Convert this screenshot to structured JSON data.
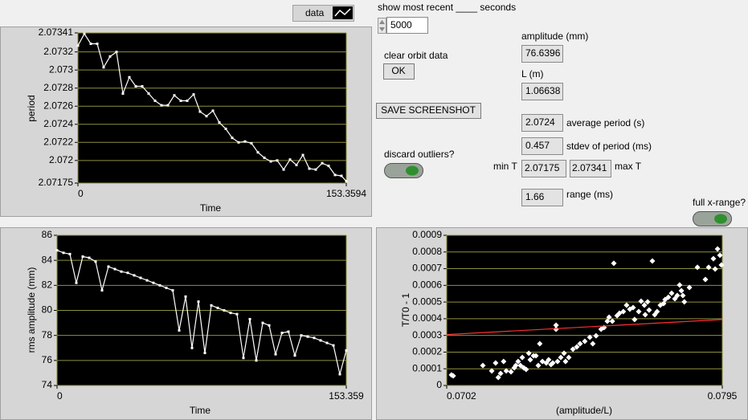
{
  "chart_data": [
    {
      "type": "line",
      "xlabel": "Time",
      "ylabel": "period",
      "xlim": [
        0,
        153.3594
      ],
      "ylim": [
        2.07175,
        2.07341
      ],
      "xticks": [
        0,
        153.3594
      ],
      "yticks": [
        2.07175,
        2.072,
        2.0722,
        2.0724,
        2.0726,
        2.0728,
        2.073,
        2.0732,
        2.07341
      ],
      "grid": true,
      "grid_color": "#8f8f40",
      "background": "#000000",
      "legend": "top-right",
      "series": [
        {
          "name": "data",
          "color": "#ffffff",
          "line": true,
          "marker": "square",
          "x": [
            0,
            3.67,
            7.35,
            11.02,
            14.69,
            18.37,
            22.04,
            25.71,
            29.39,
            33.06,
            36.73,
            40.41,
            44.08,
            47.75,
            51.43,
            55.1,
            58.77,
            62.45,
            66.12,
            69.79,
            73.47,
            77.14,
            80.81,
            84.49,
            88.16,
            91.83,
            95.51,
            99.18,
            102.85,
            106.53,
            110.2,
            113.87,
            117.55,
            121.22,
            124.89,
            128.57,
            132.24,
            135.91,
            139.59,
            143.26,
            146.93,
            150.61,
            153.36
          ],
          "values": [
            2.07327,
            2.0734,
            2.07329,
            2.07329,
            2.07303,
            2.07315,
            2.0732,
            2.07274,
            2.07292,
            2.07282,
            2.07282,
            2.07274,
            2.07266,
            2.07261,
            2.07261,
            2.07272,
            2.07266,
            2.07266,
            2.07273,
            2.07254,
            2.07249,
            2.07255,
            2.07242,
            2.07235,
            2.07225,
            2.0722,
            2.07221,
            2.07219,
            2.07209,
            2.07203,
            2.07199,
            2.072,
            2.0719,
            2.07201,
            2.07195,
            2.07206,
            2.07191,
            2.0719,
            2.07197,
            2.07194,
            2.07184,
            2.07183,
            2.07177
          ]
        }
      ]
    },
    {
      "type": "line",
      "xlabel": "Time",
      "ylabel": "rms amplitude (mm)",
      "xlim": [
        0,
        153.359
      ],
      "ylim": [
        74,
        86
      ],
      "xticks": [
        0,
        153.359
      ],
      "yticks": [
        74,
        76,
        78,
        80,
        82,
        84,
        86
      ],
      "grid": true,
      "grid_color": "#8f8f40",
      "background": "#000000",
      "series": [
        {
          "color": "#ffffff",
          "line": true,
          "marker": "square",
          "x": [
            0,
            3.408,
            6.816,
            10.224,
            13.632,
            17.04,
            20.448,
            23.856,
            27.264,
            30.672,
            34.08,
            37.488,
            40.896,
            44.304,
            47.712,
            51.12,
            54.528,
            57.936,
            61.344,
            64.752,
            68.16,
            71.568,
            74.976,
            78.384,
            81.792,
            85.2,
            88.608,
            92.016,
            95.424,
            98.832,
            102.24,
            105.648,
            109.056,
            112.464,
            115.872,
            119.28,
            122.688,
            126.096,
            129.504,
            132.912,
            136.32,
            139.728,
            143.136,
            146.544,
            149.952,
            153.359
          ],
          "values": [
            84.8,
            84.6,
            84.5,
            82.2,
            84.3,
            84.2,
            83.9,
            81.6,
            83.5,
            83.3,
            83.1,
            83.0,
            82.8,
            82.6,
            82.4,
            82.2,
            82.0,
            81.8,
            81.6,
            78.4,
            81.1,
            77.0,
            80.7,
            76.6,
            80.4,
            80.2,
            80.0,
            79.8,
            79.7,
            76.2,
            79.3,
            76.0,
            79.0,
            78.8,
            76.5,
            78.2,
            78.3,
            76.4,
            78.0,
            77.9,
            77.8,
            77.6,
            77.4,
            77.2,
            74.9,
            76.8
          ]
        }
      ]
    },
    {
      "type": "scatter",
      "xlabel": "(amplitude/L)",
      "ylabel": "T/T0 - 1",
      "xlim": [
        0.0702,
        0.0795
      ],
      "ylim": [
        0,
        0.0009
      ],
      "xticks": [
        0.0702,
        0.0795
      ],
      "yticks": [
        0,
        0.0001,
        0.0002,
        0.0003,
        0.0004,
        0.0005,
        0.0006,
        0.0007,
        0.0008,
        0.0009
      ],
      "grid": true,
      "grid_color": "#8f8f40",
      "background": "#000000",
      "series": [
        {
          "color": "#ffffff",
          "line": false,
          "marker": "diamond",
          "x": [
            0.07036,
            0.07042,
            0.07142,
            0.07172,
            0.07185,
            0.07194,
            0.07202,
            0.07212,
            0.07221,
            0.07237,
            0.07248,
            0.07253,
            0.07261,
            0.07269,
            0.07275,
            0.0728,
            0.07288,
            0.07297,
            0.07302,
            0.07313,
            0.07321,
            0.07329,
            0.07334,
            0.07343,
            0.07356,
            0.07364,
            0.07372,
            0.07378,
            0.07389,
            0.07389,
            0.07394,
            0.07405,
            0.07416,
            0.07421,
            0.07432,
            0.07446,
            0.07459,
            0.0747,
            0.07486,
            0.07503,
            0.07513,
            0.07524,
            0.07541,
            0.07551,
            0.07562,
            0.07568,
            0.07579,
            0.07584,
            0.07595,
            0.07603,
            0.07616,
            0.07627,
            0.07638,
            0.07649,
            0.07654,
            0.07668,
            0.07676,
            0.07687,
            0.0769,
            0.07698,
            0.07703,
            0.07714,
            0.07722,
            0.0773,
            0.07741,
            0.07752,
            0.07757,
            0.07768,
            0.07779,
            0.0779,
            0.07798,
            0.07806,
            0.07812,
            0.07817,
            0.07822,
            0.07839,
            0.07866,
            0.07893,
            0.07904,
            0.0792,
            0.07926,
            0.07934,
            0.07942,
            0.07947
          ],
          "values": [
            6.3e-05,
            5.8e-05,
            0.00012,
            8.7e-05,
            0.000135,
            4.8e-05,
            7.2e-05,
            0.000144,
            8.7e-05,
            8.2e-05,
            0.000106,
            0.00012,
            0.000144,
            0.00012,
            0.000168,
            0.000106,
            9.6e-05,
            0.000193,
            0.000154,
            0.000178,
            0.000178,
            0.00012,
            0.00025,
            0.000144,
            0.000135,
            0.000154,
            0.000125,
            0.000135,
            0.000337,
            0.000361,
            0.000144,
            0.000168,
            0.000193,
            0.000144,
            0.000168,
            0.000217,
            0.000231,
            0.00025,
            0.000265,
            0.000289,
            0.00025,
            0.000298,
            0.000337,
            0.000347,
            0.000385,
            0.000409,
            0.000385,
            0.000732,
            0.000419,
            0.000433,
            0.000443,
            0.000481,
            0.000457,
            0.000467,
            0.000395,
            0.000443,
            0.000505,
            0.000481,
            0.000424,
            0.000501,
            0.000452,
            0.000746,
            0.000424,
            0.000443,
            0.000481,
            0.000491,
            0.000515,
            0.000529,
            0.000553,
            0.00052,
            0.000539,
            0.000602,
            0.000568,
            0.000539,
            0.000501,
            0.000587,
            0.000708,
            0.000635,
            0.000708,
            0.00076,
            0.000698,
            0.000818,
            0.00078,
            0.000722
          ]
        },
        {
          "color": "#ff3030",
          "line": true,
          "marker": "none",
          "x": [
            0.0702,
            0.0795
          ],
          "values": [
            0.000305,
            0.000395
          ]
        }
      ]
    }
  ],
  "controls": {
    "show_recent_label": "show most recent ____ seconds",
    "show_recent_value": "5000",
    "clear_label": "clear orbit data",
    "clear_button": "OK",
    "save_button": "SAVE SCREENSHOT",
    "discard_label": "discard outliers?",
    "amplitude_label": "amplitude (mm)",
    "amplitude_value": "76.6396",
    "L_label": "L (m)",
    "L_value": "1.06638",
    "avg_period_label": "average period (s)",
    "avg_period_value": "2.0724",
    "stdev_label": "stdev of period (ms)",
    "stdev_value": "0.457",
    "minT_label": "min T",
    "minT_value": "2.07175",
    "maxT_label": "max T",
    "maxT_value": "2.07341",
    "range_label": "range (ms)",
    "range_value": "1.66",
    "full_x_label": "full x-range?"
  }
}
